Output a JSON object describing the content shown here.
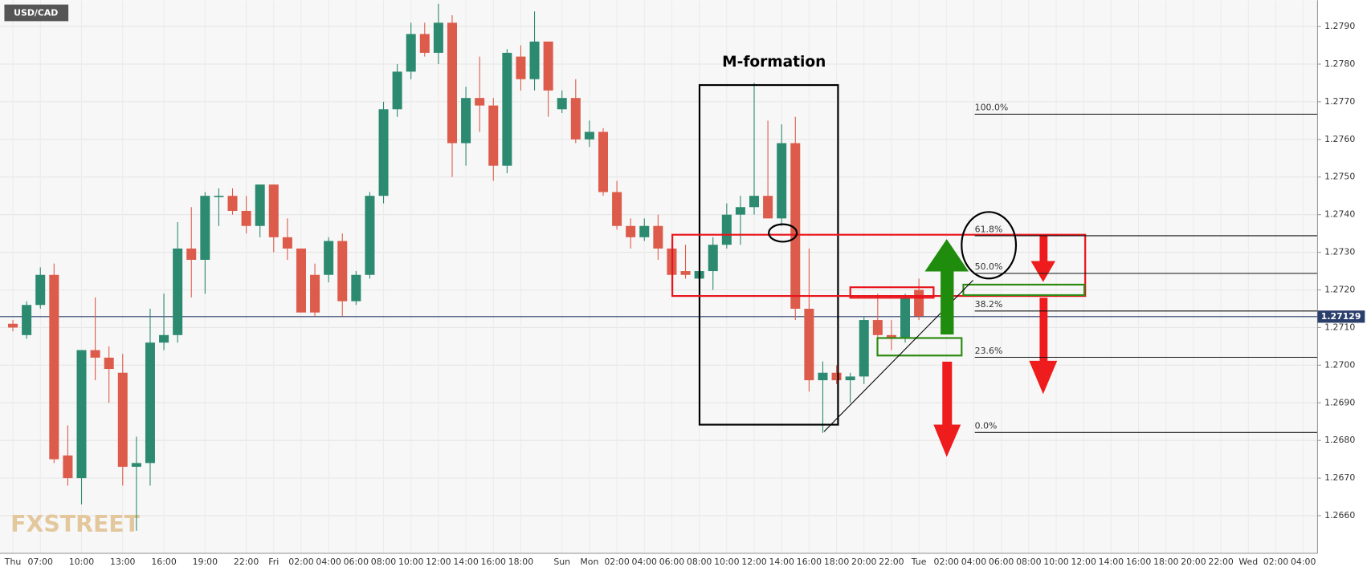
{
  "chart_data": {
    "type": "candlestick",
    "title": "USD/CAD",
    "annotation": "M-formation",
    "watermark": "FXSTREET",
    "categories": [
      "Thu",
      null,
      "07:00",
      null,
      null,
      "10:00",
      null,
      null,
      "13:00",
      null,
      null,
      "16:00",
      null,
      null,
      "19:00",
      null,
      null,
      "22:00",
      null,
      "Fri",
      null,
      "02:00",
      null,
      "04:00",
      null,
      "06:00",
      null,
      "08:00",
      null,
      "10:00",
      null,
      "12:00",
      null,
      "14:00",
      null,
      "16:00",
      null,
      "18:00",
      null,
      null,
      "Sun",
      null,
      "Mon",
      null,
      "02:00",
      null,
      "04:00",
      null,
      "06:00",
      null,
      "08:00",
      null,
      "10:00",
      null,
      "12:00",
      null,
      "14:00",
      null,
      "16:00",
      null,
      "18:00",
      null,
      "20:00",
      null,
      "22:00",
      null,
      "Tue",
      null,
      "02:00",
      null,
      "04:00",
      null,
      "06:00",
      null,
      "08:00",
      null,
      "10:00",
      null,
      "12:00",
      null,
      "14:00",
      null,
      "16:00",
      null,
      "18:00",
      null,
      "20:00",
      null,
      "22:00",
      null,
      "Wed",
      null,
      "02:00",
      null,
      "04:00"
    ],
    "open": [
      1.2711,
      1.2708,
      1.2716,
      1.2724,
      1.2676,
      1.267,
      1.2704,
      1.2702,
      1.2698,
      1.2673,
      1.2674,
      1.2706,
      1.2708,
      1.2731,
      1.2728,
      1.2745,
      1.2745,
      1.2741,
      1.2737,
      1.2748,
      1.2734,
      1.2731,
      1.2724,
      1.2724,
      1.2733,
      1.2717,
      1.2724,
      1.2745,
      1.2768,
      1.2778,
      1.2788,
      1.2783,
      1.2791,
      1.2759,
      1.2771,
      1.2769,
      1.2753,
      1.2782,
      1.2776,
      1.2786,
      1.2768,
      1.2771,
      1.276,
      1.2762,
      1.2746,
      1.2737,
      1.2734,
      1.2737,
      1.2731,
      1.2725,
      1.2723,
      1.2725,
      1.2732,
      1.274,
      1.2742,
      1.2745,
      1.2739,
      1.2759,
      1.2715,
      1.2696,
      1.2698,
      1.2696,
      1.2697,
      1.2712,
      1.2708,
      1.2707,
      1.272,
      null,
      null,
      null,
      null,
      null,
      null,
      null,
      null,
      null,
      null,
      null,
      null,
      null,
      null,
      null,
      null,
      null,
      null,
      null,
      null,
      null,
      null,
      null,
      null,
      null,
      null,
      null,
      null
    ],
    "high": [
      1.2712,
      1.2717,
      1.2726,
      1.2727,
      1.2684,
      1.2704,
      1.2718,
      1.2705,
      1.2703,
      1.2681,
      1.2715,
      1.2719,
      1.2738,
      1.2742,
      1.2746,
      1.2747,
      1.2747,
      1.2745,
      1.2748,
      1.2748,
      1.2739,
      1.2731,
      1.2727,
      1.2734,
      1.2735,
      1.2725,
      1.2746,
      1.277,
      1.278,
      1.2791,
      1.2791,
      1.2796,
      1.2793,
      1.2774,
      1.2782,
      1.2771,
      1.2784,
      1.2785,
      1.2794,
      1.2786,
      1.2773,
      1.2776,
      1.2765,
      1.2763,
      1.2749,
      1.2739,
      1.2739,
      1.274,
      1.2733,
      1.2732,
      1.2726,
      1.2734,
      1.2743,
      1.2745,
      1.2775,
      1.2765,
      1.2764,
      1.2766,
      1.2731,
      1.2701,
      1.27,
      1.2698,
      1.2713,
      1.2719,
      1.2712,
      1.2719,
      1.2723,
      null,
      null,
      null,
      null,
      null,
      null,
      null,
      null,
      null,
      null,
      null,
      null,
      null,
      null,
      null,
      null,
      null,
      null,
      null,
      null,
      null,
      null,
      null,
      null,
      null,
      null,
      null,
      null
    ],
    "low": [
      1.2709,
      1.2707,
      1.2715,
      1.2674,
      1.2668,
      1.2663,
      1.2696,
      1.269,
      1.2668,
      1.2656,
      1.2668,
      1.2704,
      1.2706,
      1.2718,
      1.2719,
      1.2737,
      1.274,
      1.2735,
      1.2734,
      1.273,
      1.2728,
      1.2714,
      1.2713,
      1.2722,
      1.2713,
      1.2716,
      1.2723,
      1.2743,
      1.2766,
      1.2776,
      1.2782,
      1.278,
      1.275,
      1.2753,
      1.2762,
      1.2749,
      1.2751,
      1.2773,
      1.2773,
      1.2766,
      1.2767,
      1.2759,
      1.2758,
      1.2745,
      1.2736,
      1.2731,
      1.2733,
      1.2728,
      1.272,
      1.2723,
      1.2722,
      1.272,
      1.2731,
      1.2732,
      1.274,
      1.2739,
      1.2737,
      1.2712,
      1.2693,
      1.2682,
      1.2695,
      1.269,
      1.2695,
      1.2706,
      1.2704,
      1.2706,
      1.2712,
      null,
      null,
      null,
      null,
      null,
      null,
      null,
      null,
      null,
      null,
      null,
      null,
      null,
      null,
      null,
      null,
      null,
      null,
      null,
      null,
      null,
      null,
      null,
      null,
      null,
      null,
      null,
      null
    ],
    "close": [
      1.271,
      1.2716,
      1.2724,
      1.2675,
      1.267,
      1.2704,
      1.2702,
      1.2699,
      1.2673,
      1.2674,
      1.2706,
      1.2708,
      1.2731,
      1.2728,
      1.2745,
      1.2745,
      1.2741,
      1.2737,
      1.2748,
      1.2734,
      1.2731,
      1.2714,
      1.2714,
      1.2733,
      1.2717,
      1.2724,
      1.2745,
      1.2768,
      1.2778,
      1.2788,
      1.2783,
      1.2791,
      1.2759,
      1.2771,
      1.2769,
      1.2753,
      1.2783,
      1.2776,
      1.2786,
      1.2773,
      1.2771,
      1.276,
      1.2762,
      1.2746,
      1.2737,
      1.2734,
      1.2737,
      1.2731,
      1.2724,
      1.2724,
      1.2725,
      1.2732,
      1.274,
      1.2742,
      1.2745,
      1.2739,
      1.2759,
      1.2715,
      1.2696,
      1.2698,
      1.2696,
      1.2697,
      1.2712,
      1.2708,
      1.2707,
      1.2718,
      1.2713,
      null,
      null,
      null,
      null,
      null,
      null,
      null,
      null,
      null,
      null,
      null,
      null,
      null,
      null,
      null,
      null,
      null,
      null,
      null,
      null,
      null,
      null,
      null,
      null,
      null,
      null,
      null,
      null
    ],
    "up_color": "#2b8a6f",
    "down_color": "#dc5b4a",
    "ylim": [
      1.265,
      1.2797
    ],
    "yticks": [
      {
        "value": 1.266,
        "label": "1.2660"
      },
      {
        "value": 1.267,
        "label": "1.2670"
      },
      {
        "value": 1.268,
        "label": "1.2680"
      },
      {
        "value": 1.269,
        "label": "1.2690"
      },
      {
        "value": 1.27,
        "label": "1.2700"
      },
      {
        "value": 1.271,
        "label": "1.2710"
      },
      {
        "value": 1.272,
        "label": "1.2720"
      },
      {
        "value": 1.273,
        "label": "1.2730"
      },
      {
        "value": 1.274,
        "label": "1.2740"
      },
      {
        "value": 1.275,
        "label": "1.2750"
      },
      {
        "value": 1.276,
        "label": "1.2760"
      },
      {
        "value": 1.277,
        "label": "1.2770"
      },
      {
        "value": 1.278,
        "label": "1.2780"
      },
      {
        "value": 1.279,
        "label": "1.2790"
      }
    ],
    "last_price": 1.27129,
    "fibonacci": [
      {
        "label": "100.0%",
        "price": 1.27667
      },
      {
        "label": "61.8%",
        "price": 1.27344
      },
      {
        "label": "50.0%",
        "price": 1.27244
      },
      {
        "label": "38.2%",
        "price": 1.27144
      },
      {
        "label": "23.6%",
        "price": 1.27021
      },
      {
        "label": "0.0%",
        "price": 1.26821
      }
    ],
    "grid": true
  }
}
